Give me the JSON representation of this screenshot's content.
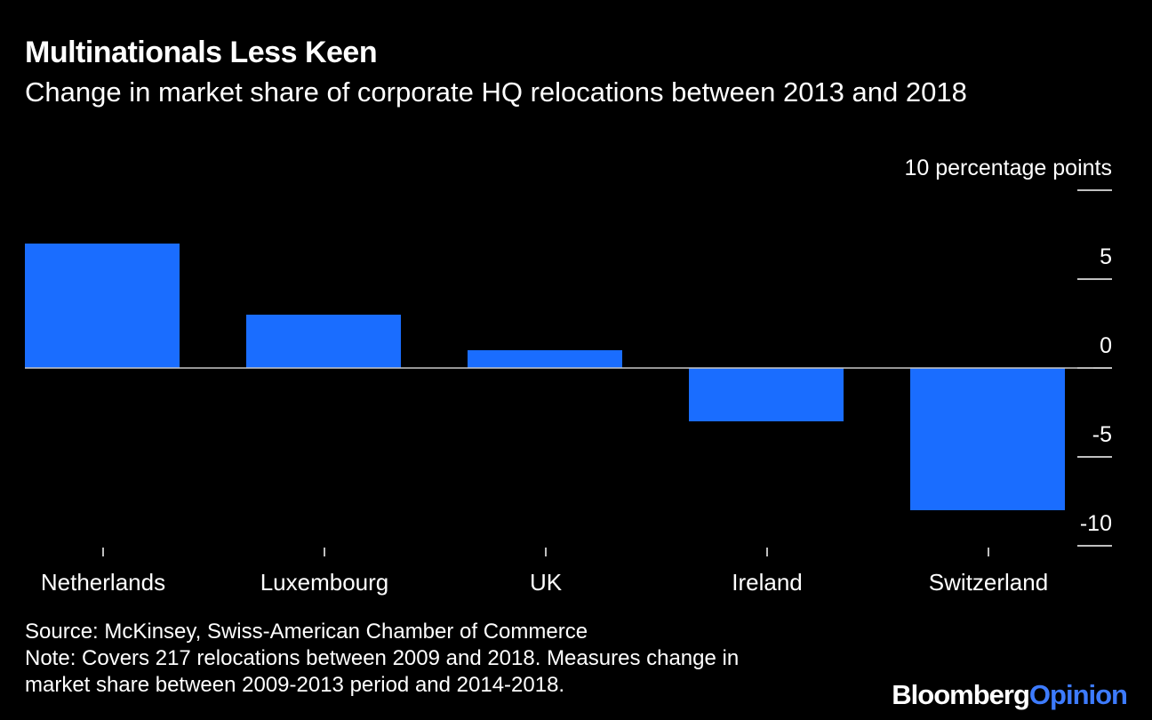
{
  "title": "Multinationals Less Keen",
  "subtitle": "Change in market share of corporate HQ relocations between 2013 and 2018",
  "footer": {
    "source": "Source: McKinsey, Swiss-American Chamber of Commerce",
    "note_line1": "Note: Covers 217 relocations between 2009 and 2018. Measures change in",
    "note_line2": "market share between 2009-2013 period and 2014-2018."
  },
  "brand": {
    "part1": "Bloomberg",
    "part2": "Opinion"
  },
  "colors": {
    "background": "#000000",
    "bar": "#1a6dff",
    "zero_line": "#c8c8c8",
    "text": "#ffffff",
    "brand_accent": "#3d7bff"
  },
  "chart_data": {
    "type": "bar",
    "categories": [
      "Netherlands",
      "Luxembourg",
      "UK",
      "Ireland",
      "Switzerland"
    ],
    "values": [
      7,
      3,
      1,
      -3,
      -8
    ],
    "ylabel": "",
    "yunit_label": "10 percentage points",
    "ylim": [
      -10,
      10
    ],
    "yticks": [
      10,
      5,
      0,
      -5,
      -10
    ],
    "ytick_labels": [
      "10 percentage points",
      "5",
      "0",
      "-5",
      "-10"
    ],
    "yaxis_position": "right",
    "grid": false
  }
}
